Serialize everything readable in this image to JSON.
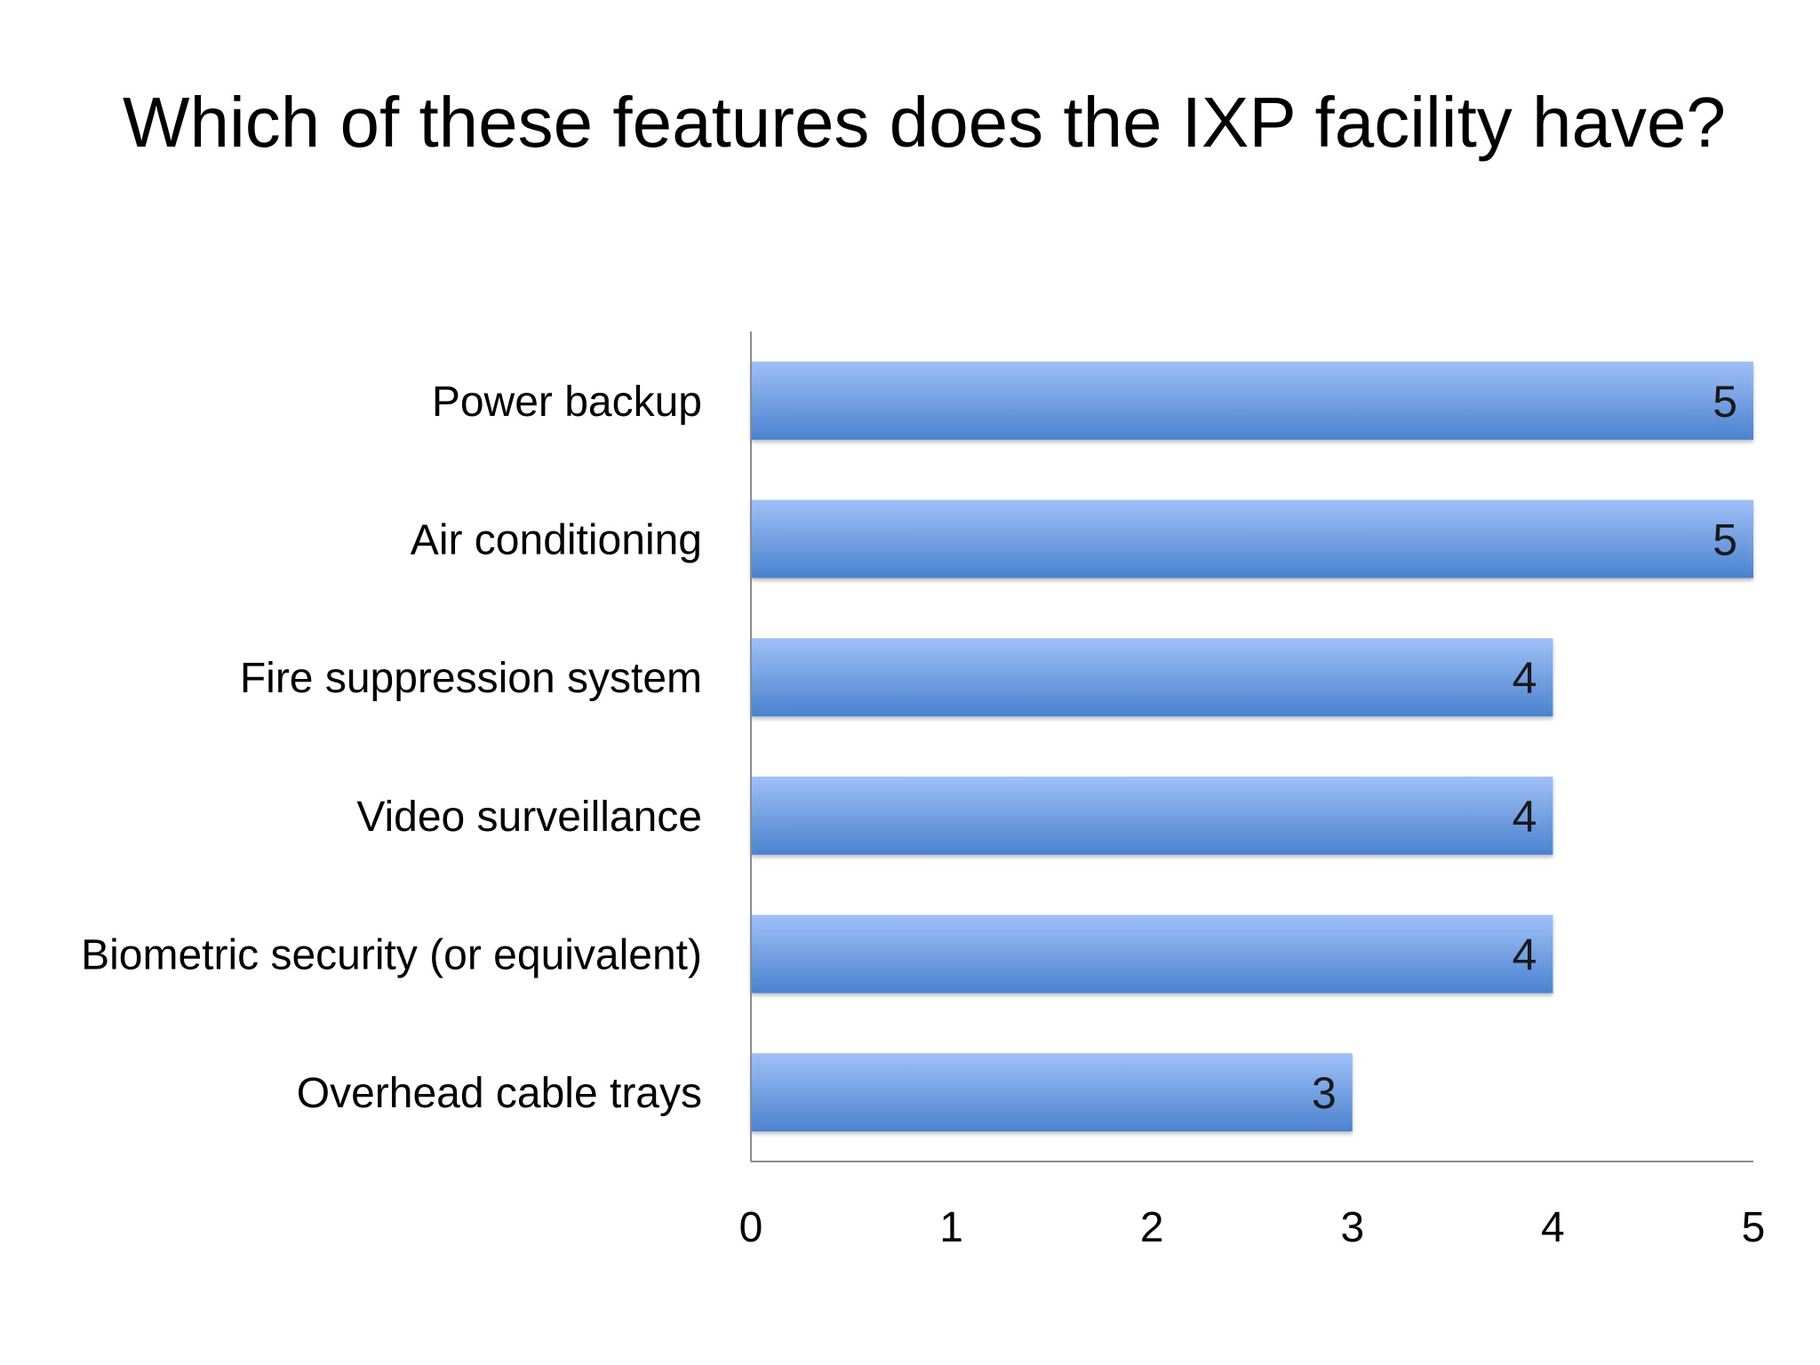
{
  "chart_data": {
    "type": "bar",
    "orientation": "horizontal",
    "title": "Which of these features does the IXP facility have?",
    "categories": [
      "Power backup",
      "Air conditioning",
      "Fire suppression system",
      "Video surveillance",
      "Biometric security (or equivalent)",
      "Overhead cable trays"
    ],
    "values": [
      5,
      5,
      4,
      4,
      4,
      3
    ],
    "data_labels": [
      "5",
      "5",
      "4",
      "4",
      "4",
      "3"
    ],
    "xlim": [
      0,
      5
    ],
    "xticks": [
      "0",
      "1",
      "2",
      "3",
      "4",
      "5"
    ],
    "grid": false,
    "legend": "none",
    "bar_color_top": "#9fc0f7",
    "bar_color_bottom": "#4a82cf",
    "axis_color": "#8c8c8c"
  }
}
